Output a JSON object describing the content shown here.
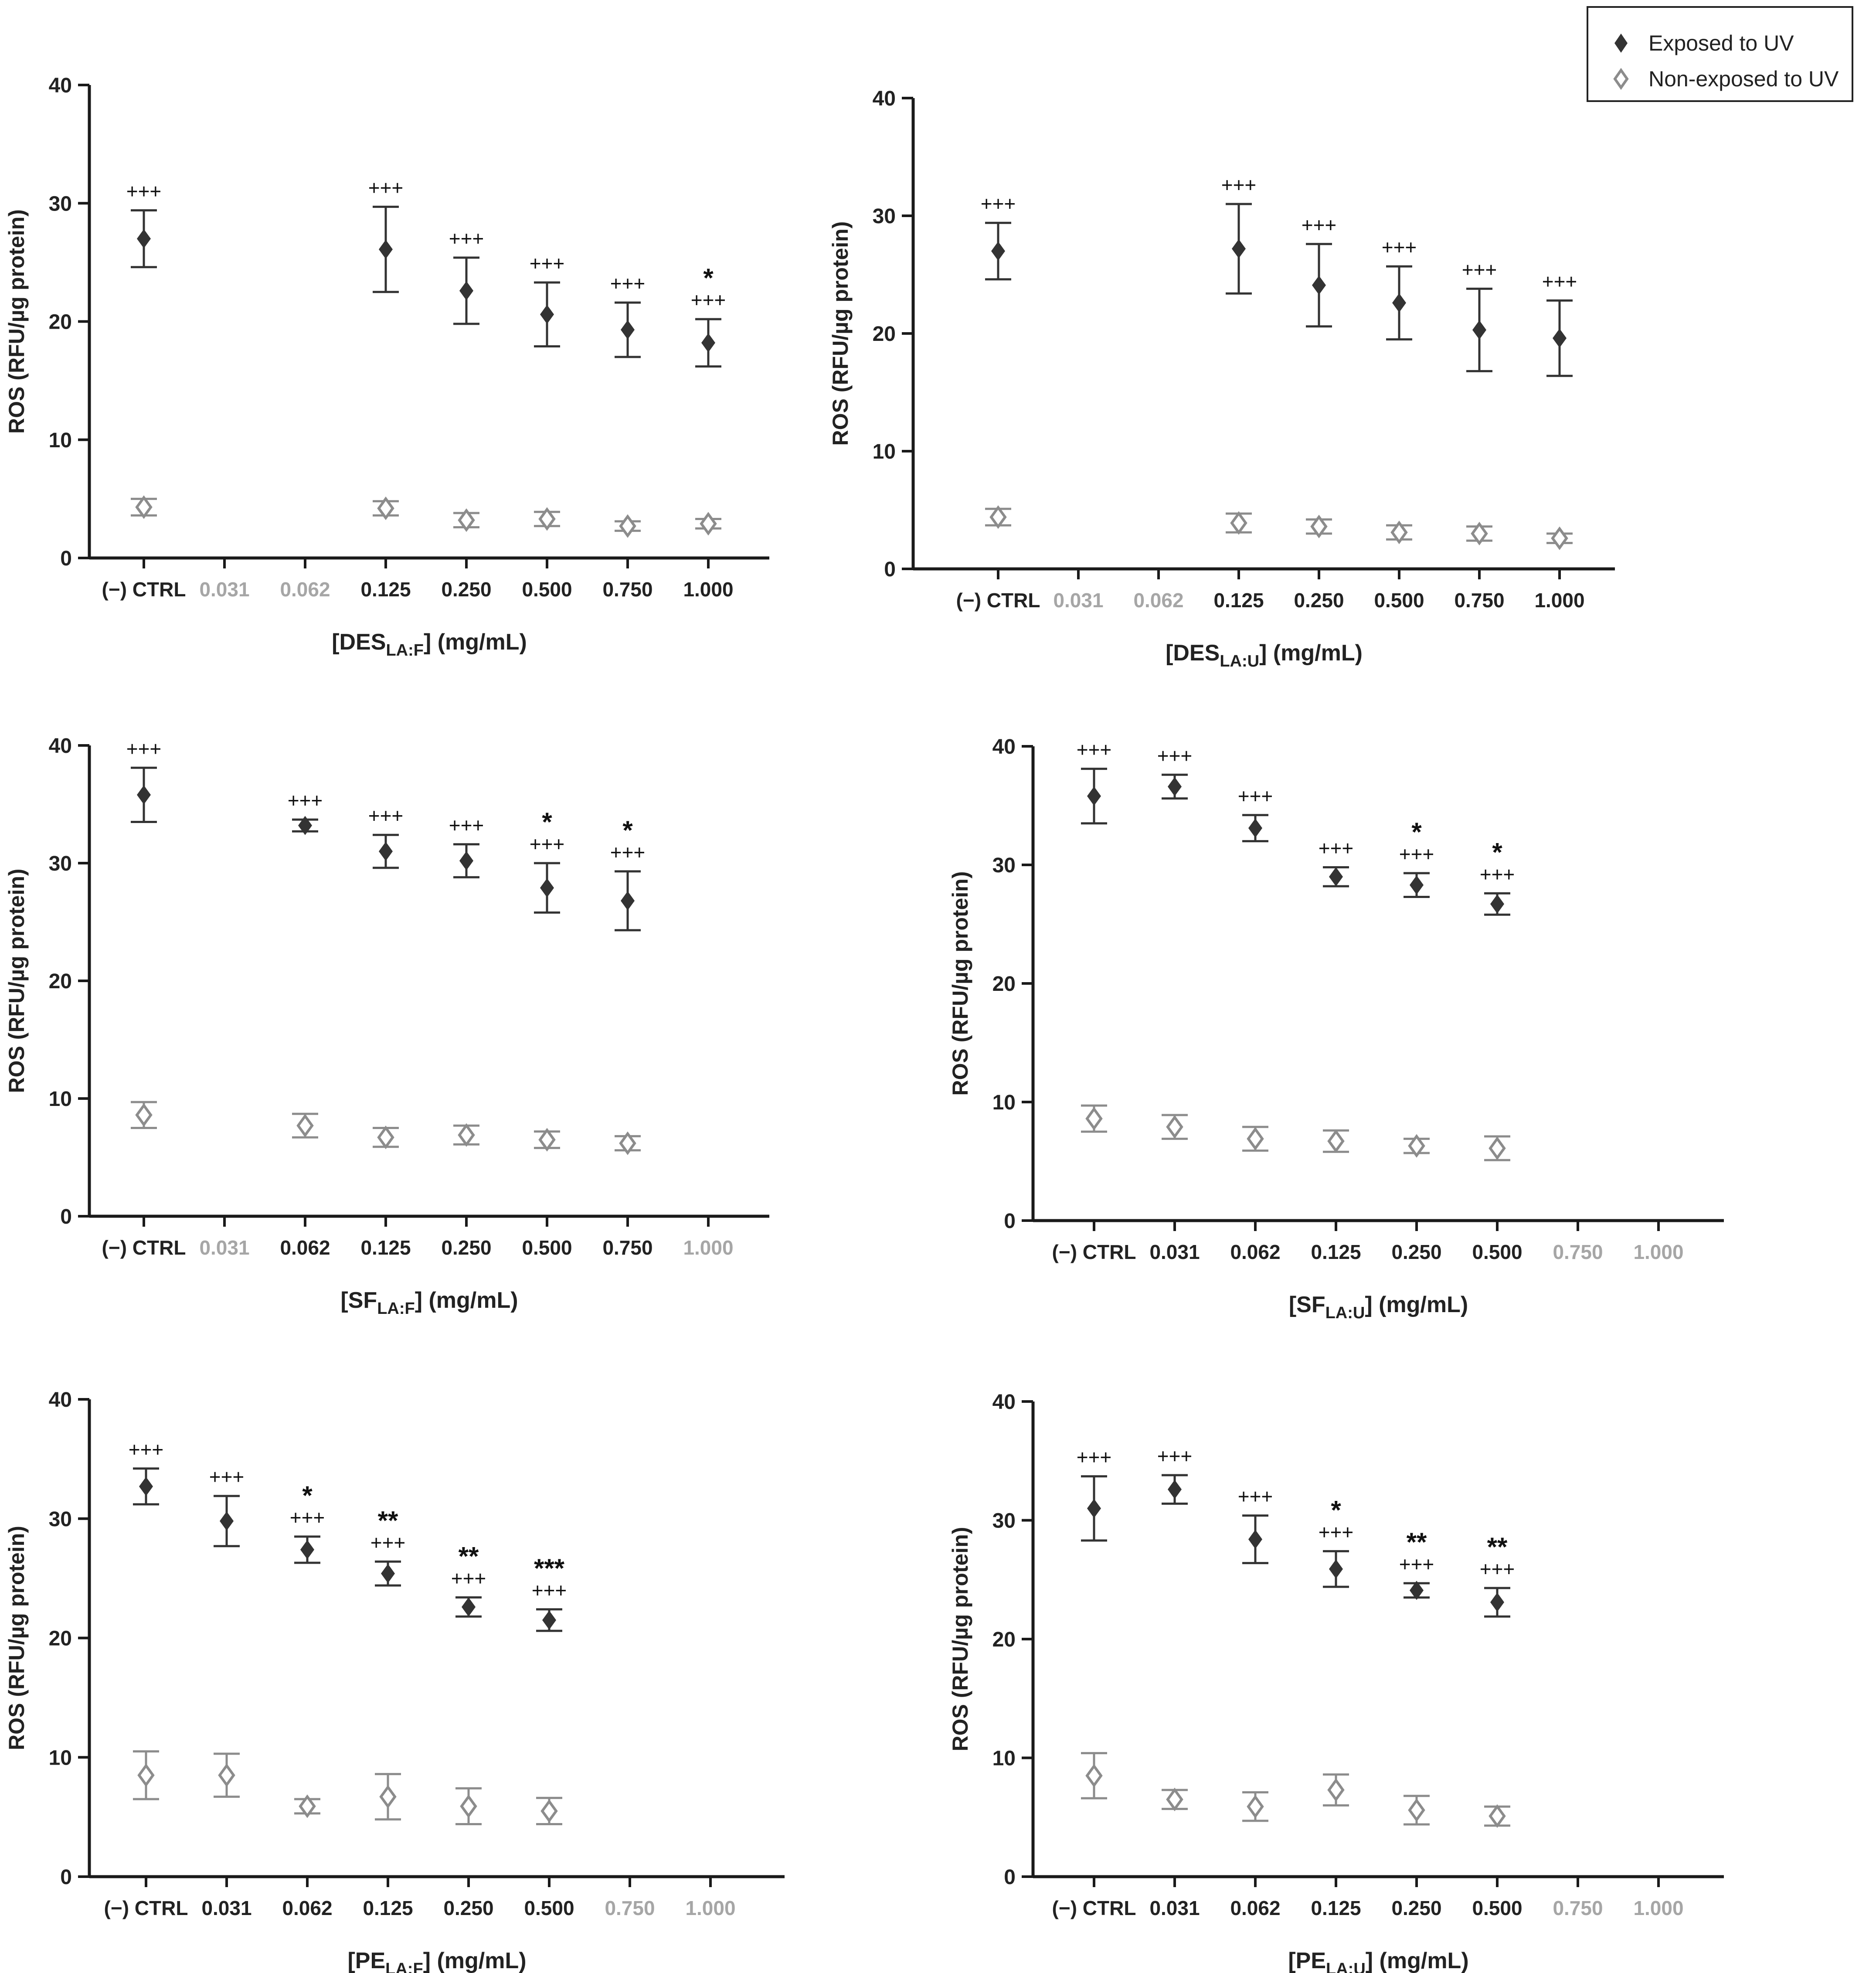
{
  "legend": {
    "exposed_label": "Exposed to UV",
    "non_exposed_label": "Non-exposed to UV",
    "exposed_marker": "filled-diamond",
    "non_exposed_marker": "open-diamond"
  },
  "colors": {
    "exposed": "#333333",
    "non_exposed": "#8c8c8c",
    "inactive_tick": "#a6a6a6",
    "axis": "#1a1a1a"
  },
  "chart_data": [
    {
      "type": "scatter",
      "id": "des-la-f",
      "ylabel": "ROS (RFU/µg protein)",
      "xlabel_prefix": "[DES",
      "xlabel_sub": "LA:F",
      "xlabel_suffix": "] (mg/mL)",
      "ylim": [
        0,
        40
      ],
      "yticks": [
        0,
        10,
        20,
        30,
        40
      ],
      "categories": [
        "(−) CTRL",
        "0.031",
        "0.062",
        "0.125",
        "0.250",
        "0.500",
        "0.750",
        "1.000"
      ],
      "category_active": [
        true,
        false,
        false,
        true,
        true,
        true,
        true,
        true
      ],
      "series": [
        {
          "name": "Exposed to UV",
          "marker": "filled",
          "values": [
            27.0,
            null,
            null,
            26.1,
            22.6,
            20.6,
            19.3,
            18.2
          ],
          "errors": [
            2.4,
            null,
            null,
            3.6,
            2.8,
            2.7,
            2.3,
            2.0
          ]
        },
        {
          "name": "Non-exposed to UV",
          "marker": "open",
          "values": [
            4.3,
            null,
            null,
            4.2,
            3.2,
            3.3,
            2.7,
            2.9
          ],
          "errors": [
            0.7,
            null,
            null,
            0.6,
            0.6,
            0.6,
            0.4,
            0.4
          ]
        }
      ],
      "annotations": [
        {
          "category": "(−) CTRL",
          "lines": [
            "+++"
          ]
        },
        {
          "category": "0.125",
          "lines": [
            "+++"
          ]
        },
        {
          "category": "0.250",
          "lines": [
            "+++"
          ]
        },
        {
          "category": "0.500",
          "lines": [
            "+++"
          ]
        },
        {
          "category": "0.750",
          "lines": [
            "+++"
          ]
        },
        {
          "category": "1.000",
          "lines": [
            "*",
            "+++"
          ]
        }
      ]
    },
    {
      "type": "scatter",
      "id": "des-la-u",
      "ylabel": "ROS (RFU/µg protein)",
      "xlabel_prefix": "[DES",
      "xlabel_sub": "LA:U",
      "xlabel_suffix": "] (mg/mL)",
      "ylim": [
        0,
        40
      ],
      "yticks": [
        0,
        10,
        20,
        30,
        40
      ],
      "categories": [
        "(−) CTRL",
        "0.031",
        "0.062",
        "0.125",
        "0.250",
        "0.500",
        "0.750",
        "1.000"
      ],
      "category_active": [
        true,
        false,
        false,
        true,
        true,
        true,
        true,
        true
      ],
      "series": [
        {
          "name": "Exposed to UV",
          "marker": "filled",
          "values": [
            27.0,
            null,
            null,
            27.2,
            24.1,
            22.6,
            20.3,
            19.6
          ],
          "errors": [
            2.4,
            null,
            null,
            3.8,
            3.5,
            3.1,
            3.5,
            3.2
          ]
        },
        {
          "name": "Non-exposed to UV",
          "marker": "open",
          "values": [
            4.4,
            null,
            null,
            3.9,
            3.6,
            3.1,
            3.0,
            2.6
          ],
          "errors": [
            0.7,
            null,
            null,
            0.8,
            0.6,
            0.6,
            0.6,
            0.4
          ]
        }
      ],
      "annotations": [
        {
          "category": "(−) CTRL",
          "lines": [
            "+++"
          ]
        },
        {
          "category": "0.125",
          "lines": [
            "+++"
          ]
        },
        {
          "category": "0.250",
          "lines": [
            "+++"
          ]
        },
        {
          "category": "0.500",
          "lines": [
            "+++"
          ]
        },
        {
          "category": "0.750",
          "lines": [
            "+++"
          ]
        },
        {
          "category": "1.000",
          "lines": [
            "+++"
          ]
        }
      ]
    },
    {
      "type": "scatter",
      "id": "sf-la-f",
      "ylabel": "ROS (RFU/µg protein)",
      "xlabel_prefix": "[SF",
      "xlabel_sub": "LA:F",
      "xlabel_suffix": "] (mg/mL)",
      "ylim": [
        0,
        40
      ],
      "yticks": [
        0,
        10,
        20,
        30,
        40
      ],
      "categories": [
        "(−) CTRL",
        "0.031",
        "0.062",
        "0.125",
        "0.250",
        "0.500",
        "0.750",
        "1.000"
      ],
      "category_active": [
        true,
        false,
        true,
        true,
        true,
        true,
        true,
        false
      ],
      "series": [
        {
          "name": "Exposed to UV",
          "marker": "filled",
          "values": [
            35.8,
            null,
            33.2,
            31.0,
            30.2,
            27.9,
            26.8,
            null
          ],
          "errors": [
            2.3,
            null,
            0.5,
            1.4,
            1.4,
            2.1,
            2.5,
            null
          ]
        },
        {
          "name": "Non-exposed to UV",
          "marker": "open",
          "values": [
            8.6,
            null,
            7.7,
            6.7,
            6.9,
            6.5,
            6.2,
            null
          ],
          "errors": [
            1.1,
            null,
            1.0,
            0.8,
            0.8,
            0.7,
            0.6,
            null
          ]
        }
      ],
      "annotations": [
        {
          "category": "(−) CTRL",
          "lines": [
            "+++"
          ]
        },
        {
          "category": "0.062",
          "lines": [
            "+++"
          ]
        },
        {
          "category": "0.125",
          "lines": [
            "+++"
          ]
        },
        {
          "category": "0.250",
          "lines": [
            "+++"
          ]
        },
        {
          "category": "0.500",
          "lines": [
            "*",
            "+++"
          ]
        },
        {
          "category": "0.750",
          "lines": [
            "*",
            "+++"
          ]
        }
      ]
    },
    {
      "type": "scatter",
      "id": "sf-la-u",
      "ylabel": "ROS (RFU/µg protein)",
      "xlabel_prefix": "[SF",
      "xlabel_sub": "LA:U",
      "xlabel_suffix": "] (mg/mL)",
      "ylim": [
        0,
        40
      ],
      "yticks": [
        0,
        10,
        20,
        30,
        40
      ],
      "categories": [
        "(−) CTRL",
        "0.031",
        "0.062",
        "0.125",
        "0.250",
        "0.500",
        "0.750",
        "1.000"
      ],
      "category_active": [
        true,
        true,
        true,
        true,
        true,
        true,
        false,
        false
      ],
      "series": [
        {
          "name": "Exposed to UV",
          "marker": "filled",
          "values": [
            35.8,
            36.6,
            33.1,
            29.0,
            28.3,
            26.7,
            null,
            null
          ],
          "errors": [
            2.3,
            1.0,
            1.1,
            0.8,
            1.0,
            0.9,
            null,
            null
          ]
        },
        {
          "name": "Non-exposed to UV",
          "marker": "open",
          "values": [
            8.6,
            7.9,
            6.9,
            6.7,
            6.3,
            6.1,
            null,
            null
          ],
          "errors": [
            1.1,
            1.0,
            1.0,
            0.9,
            0.6,
            1.0,
            null,
            null
          ]
        }
      ],
      "annotations": [
        {
          "category": "(−) CTRL",
          "lines": [
            "+++"
          ]
        },
        {
          "category": "0.031",
          "lines": [
            "+++"
          ]
        },
        {
          "category": "0.062",
          "lines": [
            "+++"
          ]
        },
        {
          "category": "0.125",
          "lines": [
            "+++"
          ]
        },
        {
          "category": "0.250",
          "lines": [
            "*",
            "+++"
          ]
        },
        {
          "category": "0.500",
          "lines": [
            "*",
            "+++"
          ]
        }
      ]
    },
    {
      "type": "scatter",
      "id": "pe-la-f",
      "ylabel": "ROS (RFU/µg protein)",
      "xlabel_prefix": "[PE",
      "xlabel_sub": "LA:F",
      "xlabel_suffix": "] (mg/mL)",
      "ylim": [
        0,
        40
      ],
      "yticks": [
        0,
        10,
        20,
        30,
        40
      ],
      "categories": [
        "(−) CTRL",
        "0.031",
        "0.062",
        "0.125",
        "0.250",
        "0.500",
        "0.750",
        "1.000"
      ],
      "category_active": [
        true,
        true,
        true,
        true,
        true,
        true,
        false,
        false
      ],
      "series": [
        {
          "name": "Exposed to UV",
          "marker": "filled",
          "values": [
            32.7,
            29.8,
            27.4,
            25.4,
            22.6,
            21.5,
            null,
            null
          ],
          "errors": [
            1.5,
            2.1,
            1.1,
            1.0,
            0.8,
            0.9,
            null,
            null
          ]
        },
        {
          "name": "Non-exposed to UV",
          "marker": "open",
          "values": [
            8.5,
            8.5,
            5.9,
            6.7,
            5.9,
            5.5,
            null,
            null
          ],
          "errors": [
            2.0,
            1.8,
            0.6,
            1.9,
            1.5,
            1.1,
            null,
            null
          ]
        }
      ],
      "annotations": [
        {
          "category": "(−) CTRL",
          "lines": [
            "+++"
          ]
        },
        {
          "category": "0.031",
          "lines": [
            "+++"
          ]
        },
        {
          "category": "0.062",
          "lines": [
            "*",
            "+++"
          ]
        },
        {
          "category": "0.125",
          "lines": [
            "**",
            "+++"
          ]
        },
        {
          "category": "0.250",
          "lines": [
            "**",
            "+++"
          ]
        },
        {
          "category": "0.500",
          "lines": [
            "***",
            "+++"
          ]
        }
      ]
    },
    {
      "type": "scatter",
      "id": "pe-la-u",
      "ylabel": "ROS (RFU/µg protein)",
      "xlabel_prefix": "[PE",
      "xlabel_sub": "LA:U",
      "xlabel_suffix": "] (mg/mL)",
      "ylim": [
        0,
        40
      ],
      "yticks": [
        0,
        10,
        20,
        30,
        40
      ],
      "categories": [
        "(−) CTRL",
        "0.031",
        "0.062",
        "0.125",
        "0.250",
        "0.500",
        "0.750",
        "1.000"
      ],
      "category_active": [
        true,
        true,
        true,
        true,
        true,
        true,
        false,
        false
      ],
      "series": [
        {
          "name": "Exposed to UV",
          "marker": "filled",
          "values": [
            31.0,
            32.6,
            28.4,
            25.9,
            24.1,
            23.1,
            null,
            null
          ],
          "errors": [
            2.7,
            1.2,
            2.0,
            1.5,
            0.6,
            1.2,
            null,
            null
          ]
        },
        {
          "name": "Non-exposed to UV",
          "marker": "open",
          "values": [
            8.5,
            6.5,
            5.9,
            7.3,
            5.6,
            5.1,
            null,
            null
          ],
          "errors": [
            1.9,
            0.8,
            1.2,
            1.3,
            1.2,
            0.8,
            null,
            null
          ]
        }
      ],
      "annotations": [
        {
          "category": "(−) CTRL",
          "lines": [
            "+++"
          ]
        },
        {
          "category": "0.031",
          "lines": [
            "+++"
          ]
        },
        {
          "category": "0.062",
          "lines": [
            "+++"
          ]
        },
        {
          "category": "0.125",
          "lines": [
            "*",
            "+++"
          ]
        },
        {
          "category": "0.250",
          "lines": [
            "**",
            "+++"
          ]
        },
        {
          "category": "0.500",
          "lines": [
            "**",
            "+++"
          ]
        }
      ]
    }
  ]
}
